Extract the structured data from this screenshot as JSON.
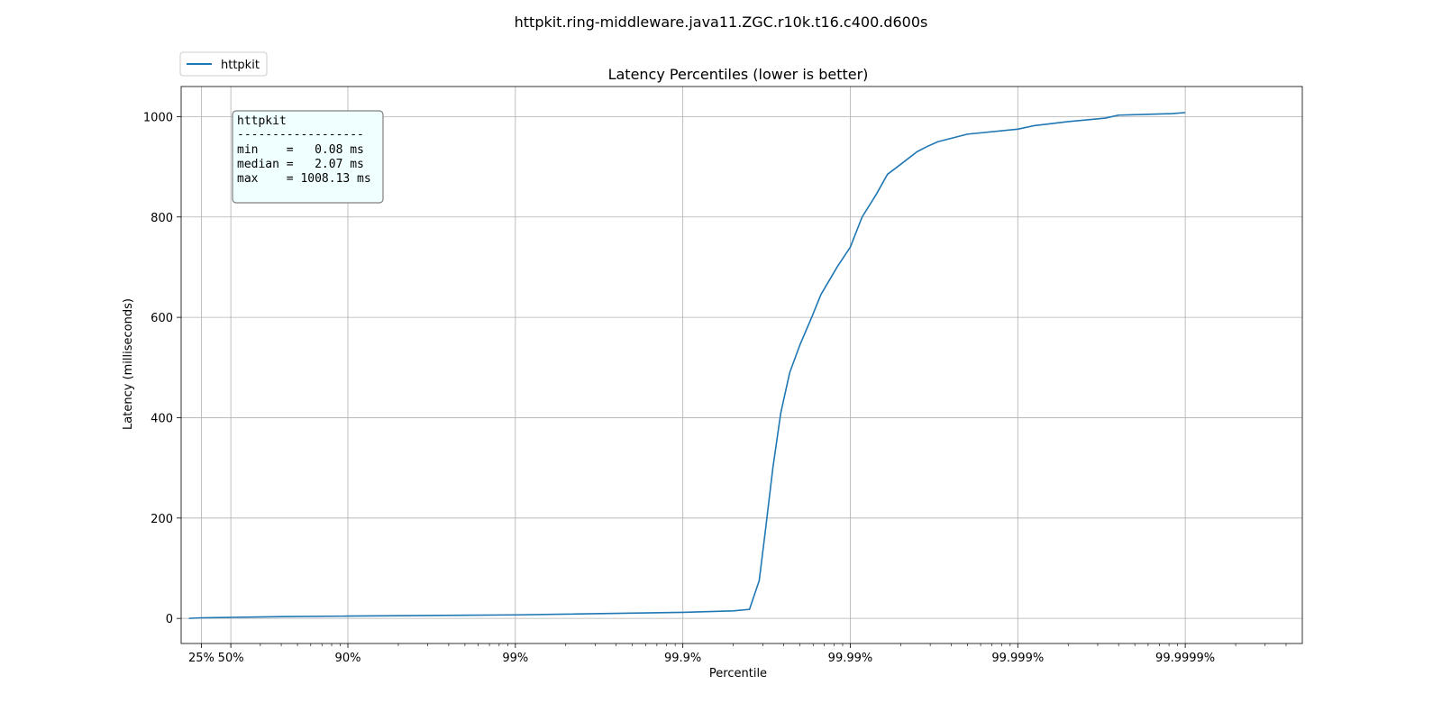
{
  "chart_data": {
    "type": "line",
    "suptitle": "httpkit.ring-middleware.java11.ZGC.r10k.t16.c400.d600s",
    "title": "Latency Percentiles (lower is better)",
    "xlabel": "Percentile",
    "ylabel": "Latency (milliseconds)",
    "x_scale": "log(1/(1-p))",
    "xlim_percentile": [
      1.0,
      99.99998
    ],
    "ylim": [
      -50,
      1060
    ],
    "grid": true,
    "legend_placement": "above top-left",
    "x_ticks": [
      {
        "value": 25,
        "label": "25%"
      },
      {
        "value": 50,
        "label": "50%"
      },
      {
        "value": 90,
        "label": "90%"
      },
      {
        "value": 99,
        "label": "99%"
      },
      {
        "value": 99.9,
        "label": "99.9%"
      },
      {
        "value": 99.99,
        "label": "99.99%"
      },
      {
        "value": 99.999,
        "label": "99.999%"
      },
      {
        "value": 99.9999,
        "label": "99.9999%"
      }
    ],
    "y_ticks": [
      0,
      200,
      400,
      600,
      800,
      1000
    ],
    "series": [
      {
        "name": "httpkit",
        "color": "#1f77b4",
        "points": [
          {
            "percentile": 0,
            "latency_ms": 0.08
          },
          {
            "percentile": 25,
            "latency_ms": 1.2
          },
          {
            "percentile": 50,
            "latency_ms": 2.07
          },
          {
            "percentile": 75,
            "latency_ms": 3.6
          },
          {
            "percentile": 90,
            "latency_ms": 4.6
          },
          {
            "percentile": 99,
            "latency_ms": 7.0
          },
          {
            "percentile": 99.9,
            "latency_ms": 12.0
          },
          {
            "percentile": 99.95,
            "latency_ms": 15.0
          },
          {
            "percentile": 99.96,
            "latency_ms": 18.0
          },
          {
            "percentile": 99.965,
            "latency_ms": 75.0
          },
          {
            "percentile": 99.968,
            "latency_ms": 180.0
          },
          {
            "percentile": 99.971,
            "latency_ms": 300.0
          },
          {
            "percentile": 99.974,
            "latency_ms": 410.0
          },
          {
            "percentile": 99.977,
            "latency_ms": 490.0
          },
          {
            "percentile": 99.98,
            "latency_ms": 545.0
          },
          {
            "percentile": 99.983,
            "latency_ms": 600.0
          },
          {
            "percentile": 99.985,
            "latency_ms": 645.0
          },
          {
            "percentile": 99.988,
            "latency_ms": 700.0
          },
          {
            "percentile": 99.99,
            "latency_ms": 740.0
          },
          {
            "percentile": 99.9915,
            "latency_ms": 800.0
          },
          {
            "percentile": 99.993,
            "latency_ms": 845.0
          },
          {
            "percentile": 99.994,
            "latency_ms": 885.0
          },
          {
            "percentile": 99.995,
            "latency_ms": 905.0
          },
          {
            "percentile": 99.996,
            "latency_ms": 930.0
          },
          {
            "percentile": 99.9965,
            "latency_ms": 940.0
          },
          {
            "percentile": 99.997,
            "latency_ms": 950.0
          },
          {
            "percentile": 99.998,
            "latency_ms": 965.0
          },
          {
            "percentile": 99.999,
            "latency_ms": 975.0
          },
          {
            "percentile": 99.9992,
            "latency_ms": 982.0
          },
          {
            "percentile": 99.9995,
            "latency_ms": 990.0
          },
          {
            "percentile": 99.9997,
            "latency_ms": 997.0
          },
          {
            "percentile": 99.99975,
            "latency_ms": 1003.0
          },
          {
            "percentile": 99.99988,
            "latency_ms": 1006.0
          },
          {
            "percentile": 99.9999,
            "latency_ms": 1008.13
          }
        ]
      }
    ],
    "legend": {
      "entries": [
        "httpkit"
      ]
    },
    "stats_box": {
      "lines": [
        "httpkit",
        "------------------",
        "min    =   0.08 ms",
        "median =   2.07 ms",
        "max    = 1008.13 ms"
      ],
      "background": "#f0ffff"
    }
  }
}
